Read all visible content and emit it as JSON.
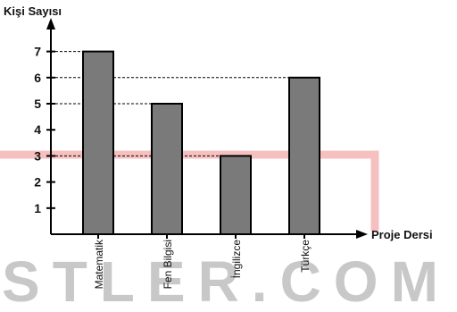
{
  "chart_data": {
    "type": "bar",
    "title": "",
    "ylabel": "Kişi Sayısı",
    "xlabel": "Proje Dersi",
    "categories": [
      "Matematik",
      "Fen Bilgisi",
      "İngilizce",
      "Türkçe"
    ],
    "values": [
      7,
      5,
      3,
      6
    ],
    "ylim": [
      0,
      8
    ],
    "yticks": [
      1,
      2,
      3,
      4,
      5,
      6,
      7
    ],
    "reference_lines": [
      7,
      6,
      5,
      3
    ],
    "grid": false,
    "legend": "none",
    "bar_color": "#7a7a7a"
  },
  "watermark": {
    "text": "STLER.COM",
    "color": "#c8c8c8",
    "highlight_color": "#f2a5a5"
  }
}
